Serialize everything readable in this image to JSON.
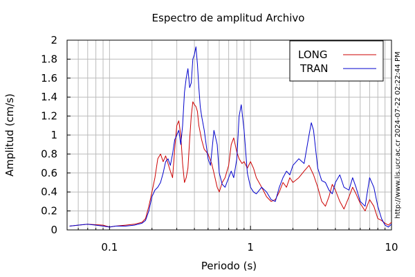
{
  "chart_data": {
    "type": "line",
    "title": "Espectro de amplitud Archivo",
    "xlabel": "Periodo (s)",
    "ylabel": "Amplitud (cm/s)",
    "xscale": "log",
    "xlim": [
      0.05,
      10
    ],
    "ylim": [
      0,
      2
    ],
    "grid": true,
    "legend_position": "top-right",
    "x_ticks": [
      0.1,
      1,
      10
    ],
    "x_tick_labels": [
      "0.1",
      "1",
      "10"
    ],
    "y_ticks": [
      0,
      0.2,
      0.4,
      0.6,
      0.8,
      1,
      1.2,
      1.4,
      1.6,
      1.8,
      2
    ],
    "y_tick_labels": [
      "0",
      "0.2",
      "0.4",
      "0.6",
      "0.8",
      "1",
      "1.2",
      "1.4",
      "1.6",
      "1.8",
      "2"
    ],
    "side_label": "http://www.lis.ucr.ac.cr   2024-07-22 02:22:44 PM",
    "series": [
      {
        "name": "LONG",
        "color": "#cc0000",
        "points": [
          [
            0.052,
            0.04
          ],
          [
            0.06,
            0.05
          ],
          [
            0.07,
            0.06
          ],
          [
            0.08,
            0.055
          ],
          [
            0.09,
            0.05
          ],
          [
            0.1,
            0.03
          ],
          [
            0.11,
            0.04
          ],
          [
            0.13,
            0.05
          ],
          [
            0.15,
            0.06
          ],
          [
            0.17,
            0.08
          ],
          [
            0.18,
            0.12
          ],
          [
            0.19,
            0.25
          ],
          [
            0.2,
            0.4
          ],
          [
            0.21,
            0.55
          ],
          [
            0.22,
            0.75
          ],
          [
            0.23,
            0.8
          ],
          [
            0.24,
            0.72
          ],
          [
            0.25,
            0.78
          ],
          [
            0.26,
            0.7
          ],
          [
            0.27,
            0.62
          ],
          [
            0.28,
            0.55
          ],
          [
            0.29,
            0.85
          ],
          [
            0.3,
            1.1
          ],
          [
            0.31,
            1.15
          ],
          [
            0.32,
            1.0
          ],
          [
            0.33,
            0.7
          ],
          [
            0.34,
            0.5
          ],
          [
            0.35,
            0.55
          ],
          [
            0.36,
            0.65
          ],
          [
            0.37,
            0.95
          ],
          [
            0.38,
            1.2
          ],
          [
            0.39,
            1.35
          ],
          [
            0.4,
            1.32
          ],
          [
            0.41,
            1.3
          ],
          [
            0.42,
            1.25
          ],
          [
            0.43,
            1.1
          ],
          [
            0.45,
            0.95
          ],
          [
            0.47,
            0.85
          ],
          [
            0.5,
            0.8
          ],
          [
            0.53,
            0.7
          ],
          [
            0.55,
            0.6
          ],
          [
            0.58,
            0.45
          ],
          [
            0.6,
            0.4
          ],
          [
            0.63,
            0.5
          ],
          [
            0.66,
            0.55
          ],
          [
            0.7,
            0.68
          ],
          [
            0.73,
            0.9
          ],
          [
            0.76,
            0.97
          ],
          [
            0.8,
            0.82
          ],
          [
            0.83,
            0.75
          ],
          [
            0.87,
            0.7
          ],
          [
            0.9,
            0.72
          ],
          [
            0.95,
            0.65
          ],
          [
            1.0,
            0.72
          ],
          [
            1.05,
            0.65
          ],
          [
            1.1,
            0.55
          ],
          [
            1.2,
            0.45
          ],
          [
            1.3,
            0.35
          ],
          [
            1.4,
            0.3
          ],
          [
            1.5,
            0.32
          ],
          [
            1.6,
            0.4
          ],
          [
            1.7,
            0.5
          ],
          [
            1.8,
            0.45
          ],
          [
            1.9,
            0.55
          ],
          [
            2.0,
            0.5
          ],
          [
            2.2,
            0.55
          ],
          [
            2.4,
            0.62
          ],
          [
            2.6,
            0.68
          ],
          [
            2.8,
            0.58
          ],
          [
            3.0,
            0.45
          ],
          [
            3.2,
            0.3
          ],
          [
            3.4,
            0.25
          ],
          [
            3.6,
            0.35
          ],
          [
            3.8,
            0.48
          ],
          [
            4.0,
            0.42
          ],
          [
            4.3,
            0.3
          ],
          [
            4.6,
            0.22
          ],
          [
            5.0,
            0.35
          ],
          [
            5.3,
            0.45
          ],
          [
            5.6,
            0.38
          ],
          [
            6.0,
            0.28
          ],
          [
            6.5,
            0.2
          ],
          [
            7.0,
            0.32
          ],
          [
            7.5,
            0.25
          ],
          [
            8.0,
            0.12
          ],
          [
            8.5,
            0.1
          ],
          [
            9.0,
            0.07
          ],
          [
            9.5,
            0.05
          ],
          [
            10.0,
            0.08
          ]
        ]
      },
      {
        "name": "TRAN",
        "color": "#0000cc",
        "points": [
          [
            0.052,
            0.04
          ],
          [
            0.06,
            0.05
          ],
          [
            0.07,
            0.06
          ],
          [
            0.08,
            0.05
          ],
          [
            0.09,
            0.04
          ],
          [
            0.1,
            0.03
          ],
          [
            0.11,
            0.04
          ],
          [
            0.13,
            0.04
          ],
          [
            0.15,
            0.05
          ],
          [
            0.17,
            0.07
          ],
          [
            0.18,
            0.1
          ],
          [
            0.19,
            0.2
          ],
          [
            0.2,
            0.35
          ],
          [
            0.21,
            0.42
          ],
          [
            0.22,
            0.45
          ],
          [
            0.23,
            0.5
          ],
          [
            0.24,
            0.6
          ],
          [
            0.25,
            0.72
          ],
          [
            0.26,
            0.75
          ],
          [
            0.27,
            0.68
          ],
          [
            0.28,
            0.8
          ],
          [
            0.29,
            0.95
          ],
          [
            0.3,
            1.0
          ],
          [
            0.31,
            1.05
          ],
          [
            0.32,
            0.9
          ],
          [
            0.33,
            1.1
          ],
          [
            0.34,
            1.45
          ],
          [
            0.35,
            1.6
          ],
          [
            0.36,
            1.7
          ],
          [
            0.37,
            1.5
          ],
          [
            0.38,
            1.55
          ],
          [
            0.39,
            1.8
          ],
          [
            0.4,
            1.85
          ],
          [
            0.41,
            1.93
          ],
          [
            0.42,
            1.75
          ],
          [
            0.43,
            1.5
          ],
          [
            0.44,
            1.3
          ],
          [
            0.45,
            1.2
          ],
          [
            0.47,
            1.05
          ],
          [
            0.5,
            0.75
          ],
          [
            0.52,
            0.68
          ],
          [
            0.55,
            1.05
          ],
          [
            0.58,
            0.9
          ],
          [
            0.6,
            0.6
          ],
          [
            0.63,
            0.48
          ],
          [
            0.66,
            0.45
          ],
          [
            0.7,
            0.55
          ],
          [
            0.73,
            0.62
          ],
          [
            0.76,
            0.55
          ],
          [
            0.8,
            0.75
          ],
          [
            0.83,
            1.2
          ],
          [
            0.86,
            1.32
          ],
          [
            0.9,
            1.05
          ],
          [
            0.95,
            0.6
          ],
          [
            1.0,
            0.45
          ],
          [
            1.05,
            0.4
          ],
          [
            1.1,
            0.38
          ],
          [
            1.2,
            0.45
          ],
          [
            1.3,
            0.4
          ],
          [
            1.4,
            0.32
          ],
          [
            1.5,
            0.3
          ],
          [
            1.6,
            0.45
          ],
          [
            1.7,
            0.55
          ],
          [
            1.8,
            0.62
          ],
          [
            1.9,
            0.58
          ],
          [
            2.0,
            0.68
          ],
          [
            2.2,
            0.75
          ],
          [
            2.4,
            0.7
          ],
          [
            2.6,
            1.0
          ],
          [
            2.7,
            1.13
          ],
          [
            2.8,
            1.05
          ],
          [
            3.0,
            0.65
          ],
          [
            3.2,
            0.52
          ],
          [
            3.4,
            0.5
          ],
          [
            3.6,
            0.42
          ],
          [
            3.8,
            0.38
          ],
          [
            4.0,
            0.5
          ],
          [
            4.3,
            0.58
          ],
          [
            4.6,
            0.45
          ],
          [
            5.0,
            0.42
          ],
          [
            5.3,
            0.55
          ],
          [
            5.6,
            0.45
          ],
          [
            6.0,
            0.3
          ],
          [
            6.5,
            0.25
          ],
          [
            7.0,
            0.55
          ],
          [
            7.5,
            0.45
          ],
          [
            8.0,
            0.25
          ],
          [
            8.5,
            0.12
          ],
          [
            9.0,
            0.05
          ],
          [
            9.5,
            0.03
          ],
          [
            10.0,
            0.06
          ]
        ]
      }
    ]
  }
}
